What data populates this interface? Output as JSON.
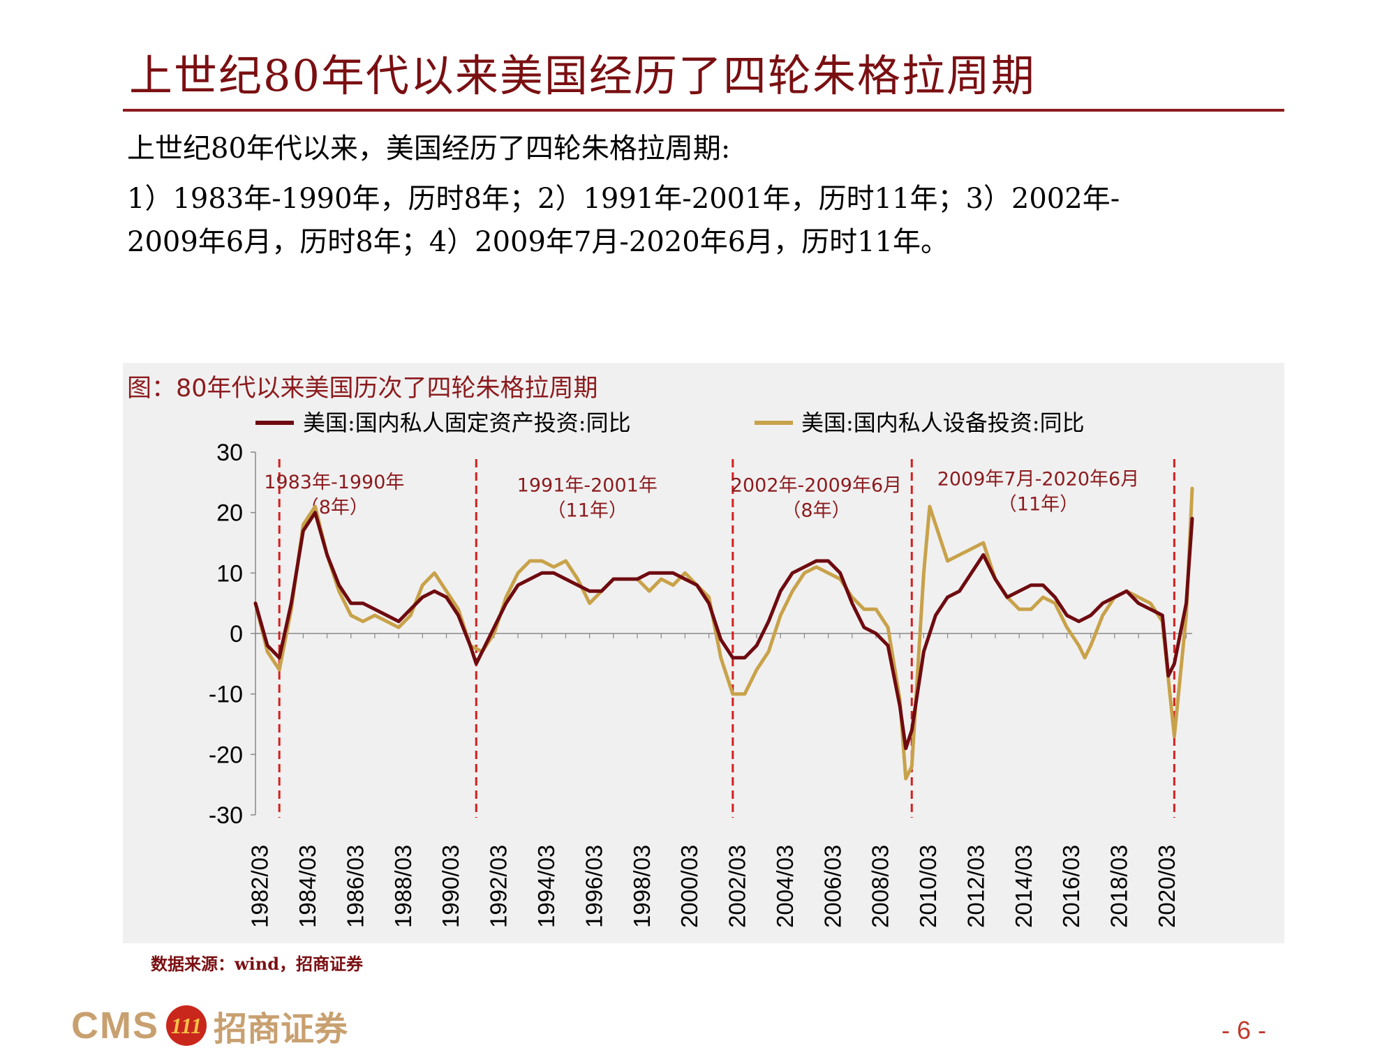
{
  "page": {
    "title": "上世纪80年代以来美国经历了四轮朱格拉周期",
    "intro_line1": "上世纪80年代以来，美国经历了四轮朱格拉周期:",
    "intro_line2": "1）1983年-1990年，历时8年；2）1991年-2001年，历时11年；3）2002年-",
    "intro_line3": "2009年6月，历时8年；4）2009年7月-2020年6月，历时11年。",
    "source": "数据来源：wind，招商证券",
    "logo_text": "CMS",
    "logo_badge": "111",
    "logo_name": "招商证券",
    "page_number": "- 6 -"
  },
  "colors": {
    "accent": "#8b1b1e",
    "series1": "#6e0b10",
    "series2": "#c8a24a",
    "divider": "#d41f1f",
    "panel": "#f1f0f0"
  },
  "chart_data": {
    "type": "line",
    "title": "图：80年代以来美国历次了四轮朱格拉周期",
    "ylim": [
      -30,
      30
    ],
    "yticks": [
      30,
      20,
      10,
      0,
      -10,
      -20,
      -30
    ],
    "xticks": [
      "1982/03",
      "1984/03",
      "1986/03",
      "1988/03",
      "1990/03",
      "1992/03",
      "1994/03",
      "1996/03",
      "1998/03",
      "2000/03",
      "2002/03",
      "2004/03",
      "2006/03",
      "2008/03",
      "2010/03",
      "2012/03",
      "2014/03",
      "2016/03",
      "2018/03",
      "2020/03"
    ],
    "x_range": [
      1982.0,
      2021.25
    ],
    "legend": "top",
    "series": [
      {
        "name": "美国:国内私人固定资产投资:同比",
        "points": [
          [
            1982.0,
            5
          ],
          [
            1982.5,
            -2
          ],
          [
            1983.0,
            -4
          ],
          [
            1983.5,
            5
          ],
          [
            1984.0,
            17
          ],
          [
            1984.5,
            20
          ],
          [
            1985.0,
            13
          ],
          [
            1985.5,
            8
          ],
          [
            1986.0,
            5
          ],
          [
            1986.5,
            5
          ],
          [
            1987.0,
            4
          ],
          [
            1987.5,
            3
          ],
          [
            1988.0,
            2
          ],
          [
            1988.5,
            4
          ],
          [
            1989.0,
            6
          ],
          [
            1989.5,
            7
          ],
          [
            1990.0,
            6
          ],
          [
            1990.5,
            3
          ],
          [
            1991.0,
            -2
          ],
          [
            1991.25,
            -5
          ],
          [
            1991.5,
            -3
          ],
          [
            1992.0,
            1
          ],
          [
            1992.5,
            5
          ],
          [
            1993.0,
            8
          ],
          [
            1993.5,
            9
          ],
          [
            1994.0,
            10
          ],
          [
            1994.5,
            10
          ],
          [
            1995.0,
            9
          ],
          [
            1995.5,
            8
          ],
          [
            1996.0,
            7
          ],
          [
            1996.5,
            7
          ],
          [
            1997.0,
            9
          ],
          [
            1997.5,
            9
          ],
          [
            1998.0,
            9
          ],
          [
            1998.5,
            10
          ],
          [
            1999.0,
            10
          ],
          [
            1999.5,
            10
          ],
          [
            2000.0,
            9
          ],
          [
            2000.5,
            8
          ],
          [
            2001.0,
            5
          ],
          [
            2001.5,
            -1
          ],
          [
            2002.0,
            -4
          ],
          [
            2002.5,
            -4
          ],
          [
            2003.0,
            -2
          ],
          [
            2003.5,
            2
          ],
          [
            2004.0,
            7
          ],
          [
            2004.5,
            10
          ],
          [
            2005.0,
            11
          ],
          [
            2005.5,
            12
          ],
          [
            2006.0,
            12
          ],
          [
            2006.5,
            10
          ],
          [
            2007.0,
            5
          ],
          [
            2007.5,
            1
          ],
          [
            2008.0,
            0
          ],
          [
            2008.5,
            -2
          ],
          [
            2009.0,
            -12
          ],
          [
            2009.25,
            -19
          ],
          [
            2009.5,
            -16
          ],
          [
            2010.0,
            -3
          ],
          [
            2010.5,
            3
          ],
          [
            2011.0,
            6
          ],
          [
            2011.5,
            7
          ],
          [
            2012.0,
            10
          ],
          [
            2012.5,
            13
          ],
          [
            2013.0,
            9
          ],
          [
            2013.5,
            6
          ],
          [
            2014.0,
            7
          ],
          [
            2014.5,
            8
          ],
          [
            2015.0,
            8
          ],
          [
            2015.5,
            6
          ],
          [
            2016.0,
            3
          ],
          [
            2016.5,
            2
          ],
          [
            2017.0,
            3
          ],
          [
            2017.5,
            5
          ],
          [
            2018.0,
            6
          ],
          [
            2018.5,
            7
          ],
          [
            2019.0,
            5
          ],
          [
            2019.5,
            4
          ],
          [
            2020.0,
            3
          ],
          [
            2020.25,
            -7
          ],
          [
            2020.5,
            -5
          ],
          [
            2021.0,
            5
          ],
          [
            2021.25,
            19
          ]
        ]
      },
      {
        "name": "美国:国内私人设备投资:同比",
        "points": [
          [
            1982.0,
            5
          ],
          [
            1982.5,
            -3
          ],
          [
            1983.0,
            -6
          ],
          [
            1983.5,
            4
          ],
          [
            1984.0,
            18
          ],
          [
            1984.5,
            21
          ],
          [
            1985.0,
            13
          ],
          [
            1985.5,
            7
          ],
          [
            1986.0,
            3
          ],
          [
            1986.5,
            2
          ],
          [
            1987.0,
            3
          ],
          [
            1987.5,
            2
          ],
          [
            1988.0,
            1
          ],
          [
            1988.5,
            3
          ],
          [
            1989.0,
            8
          ],
          [
            1989.5,
            10
          ],
          [
            1990.0,
            7
          ],
          [
            1990.5,
            4
          ],
          [
            1991.0,
            -2
          ],
          [
            1991.5,
            -3
          ],
          [
            1992.0,
            0
          ],
          [
            1992.5,
            6
          ],
          [
            1993.0,
            10
          ],
          [
            1993.5,
            12
          ],
          [
            1994.0,
            12
          ],
          [
            1994.5,
            11
          ],
          [
            1995.0,
            12
          ],
          [
            1995.5,
            9
          ],
          [
            1996.0,
            5
          ],
          [
            1996.5,
            7
          ],
          [
            1997.0,
            9
          ],
          [
            1997.5,
            9
          ],
          [
            1998.0,
            9
          ],
          [
            1998.5,
            7
          ],
          [
            1999.0,
            9
          ],
          [
            1999.5,
            8
          ],
          [
            2000.0,
            10
          ],
          [
            2000.5,
            8
          ],
          [
            2001.0,
            6
          ],
          [
            2001.5,
            -4
          ],
          [
            2002.0,
            -10
          ],
          [
            2002.5,
            -10
          ],
          [
            2003.0,
            -6
          ],
          [
            2003.5,
            -3
          ],
          [
            2004.0,
            3
          ],
          [
            2004.5,
            7
          ],
          [
            2005.0,
            10
          ],
          [
            2005.5,
            11
          ],
          [
            2006.0,
            10
          ],
          [
            2006.5,
            9
          ],
          [
            2007.0,
            6
          ],
          [
            2007.5,
            4
          ],
          [
            2008.0,
            4
          ],
          [
            2008.5,
            1
          ],
          [
            2009.0,
            -11
          ],
          [
            2009.25,
            -24
          ],
          [
            2009.5,
            -22
          ],
          [
            2010.0,
            10
          ],
          [
            2010.25,
            21
          ],
          [
            2010.5,
            18
          ],
          [
            2011.0,
            12
          ],
          [
            2011.5,
            13
          ],
          [
            2012.0,
            14
          ],
          [
            2012.5,
            15
          ],
          [
            2013.0,
            9
          ],
          [
            2013.5,
            6
          ],
          [
            2014.0,
            4
          ],
          [
            2014.5,
            4
          ],
          [
            2015.0,
            6
          ],
          [
            2015.5,
            5
          ],
          [
            2016.0,
            1
          ],
          [
            2016.5,
            -2
          ],
          [
            2016.75,
            -4
          ],
          [
            2017.0,
            -2
          ],
          [
            2017.5,
            3
          ],
          [
            2018.0,
            6
          ],
          [
            2018.5,
            7
          ],
          [
            2019.0,
            6
          ],
          [
            2019.5,
            5
          ],
          [
            2020.0,
            2
          ],
          [
            2020.5,
            -17
          ],
          [
            2021.0,
            3
          ],
          [
            2021.25,
            24
          ]
        ]
      }
    ],
    "cycles": [
      {
        "x": 1983.0,
        "label1": "1983年-1990年",
        "label2": "（8年）",
        "label_x": 1985.3,
        "label_y": 24
      },
      {
        "x": 1991.25,
        "label1": "1991年-2001年",
        "label2": "（11年）",
        "label_x": 1995.9,
        "label_y": 23.5
      },
      {
        "x": 2002.0,
        "label1": "2002年-2009年6月",
        "label2": "（8年）",
        "label_x": 2005.5,
        "label_y": 23.5
      },
      {
        "x": 2009.5,
        "label1": "2009年7月-2020年6月",
        "label2": "（11年）",
        "label_x": 2014.8,
        "label_y": 24.5
      },
      {
        "x": 2020.5,
        "label1": "",
        "label2": "",
        "label_x": 2020.5,
        "label_y": 0
      }
    ]
  }
}
